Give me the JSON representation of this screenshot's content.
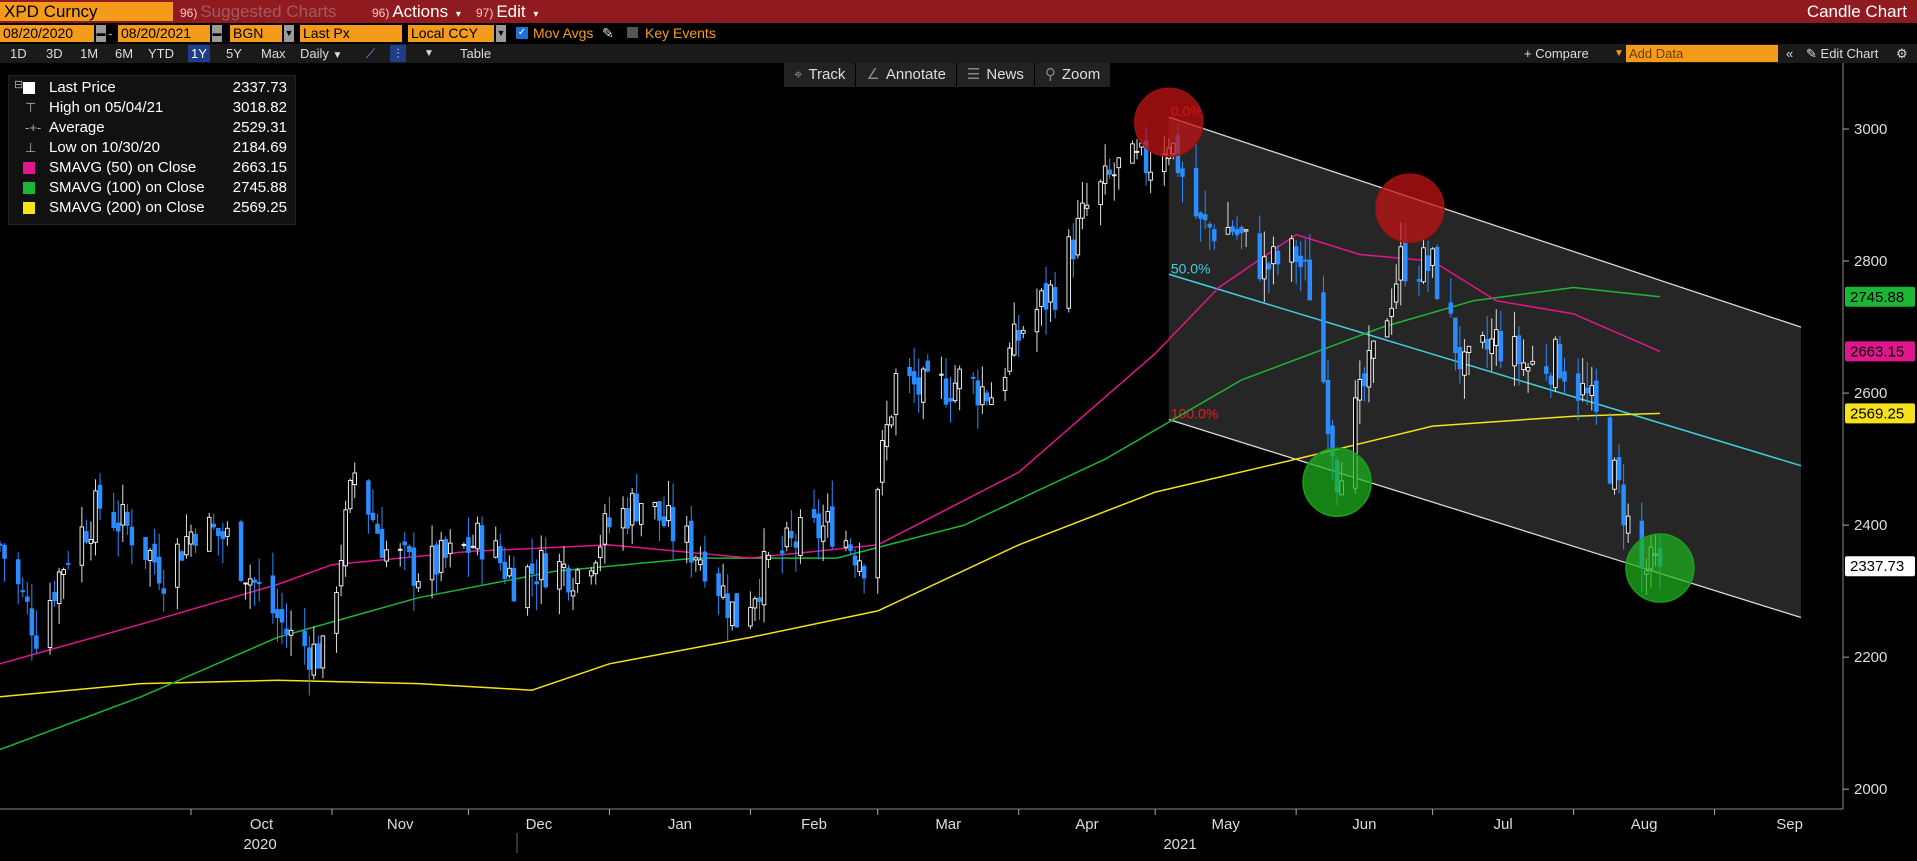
{
  "header": {
    "ticker": "XPD Curncy",
    "suggested_num": "96)",
    "suggested_label": "Suggested Charts",
    "actions_num": "96)",
    "actions_label": "Actions",
    "edit_num": "97)",
    "edit_label": "Edit",
    "chart_type": "Candle Chart"
  },
  "options": {
    "date_from": "08/20/2020",
    "date_to": "08/20/2021",
    "source": "BGN",
    "field": "Last Px",
    "currency": "Local CCY",
    "mov_avgs": "Mov Avgs",
    "key_events": "Key Events"
  },
  "range": {
    "periods": [
      "1D",
      "3D",
      "1M",
      "6M",
      "YTD",
      "1Y",
      "5Y",
      "Max"
    ],
    "selected": "1Y",
    "frequency": "Daily",
    "table": "Table",
    "compare": "+ Compare",
    "add_data_placeholder": "Add Data",
    "edit_chart": "Edit Chart"
  },
  "toolbar": {
    "track": "Track",
    "annotate": "Annotate",
    "news": "News",
    "zoom": "Zoom"
  },
  "legend": [
    {
      "label": "Last Price",
      "value": "2337.73",
      "kind": "swatch",
      "color": "#ffffff"
    },
    {
      "label": "High on 05/04/21",
      "value": "3018.82",
      "kind": "icon",
      "icon": "high-marker-icon"
    },
    {
      "label": "Average",
      "value": "2529.31",
      "kind": "icon",
      "icon": "average-marker-icon"
    },
    {
      "label": "Low on 10/30/20",
      "value": "2184.69",
      "kind": "icon",
      "icon": "low-marker-icon"
    },
    {
      "label": "SMAVG (50)  on Close",
      "value": "2663.15",
      "kind": "swatch",
      "color": "#e0168e"
    },
    {
      "label": "SMAVG (100)  on Close",
      "value": "2745.88",
      "kind": "swatch",
      "color": "#1db535"
    },
    {
      "label": "SMAVG (200)  on Close",
      "value": "2569.25",
      "kind": "swatch",
      "color": "#f5e21b"
    }
  ],
  "chart_data": {
    "type": "candlestick",
    "x_start": "2020-08-20",
    "x_end": "2021-08-20",
    "ylim": [
      1970,
      3100
    ],
    "y_ticks": [
      2000,
      2200,
      2400,
      2600,
      2800,
      3000
    ],
    "x_month_labels": [
      "Oct",
      "Nov",
      "Dec",
      "Jan",
      "Feb",
      "Mar",
      "Apr",
      "May",
      "Jun",
      "Jul",
      "Aug",
      "Sep"
    ],
    "x_year_labels": [
      "2020",
      "2021"
    ],
    "last_price": 2337.73,
    "price_path": [
      [
        "2020-08-20",
        2370
      ],
      [
        "2020-08-28",
        2240
      ],
      [
        "2020-09-04",
        2360
      ],
      [
        "2020-09-11",
        2430
      ],
      [
        "2020-09-18",
        2390
      ],
      [
        "2020-09-25",
        2330
      ],
      [
        "2020-10-02",
        2400
      ],
      [
        "2020-10-09",
        2380
      ],
      [
        "2020-10-16",
        2300
      ],
      [
        "2020-10-23",
        2230
      ],
      [
        "2020-10-30",
        2200
      ],
      [
        "2020-11-06",
        2480
      ],
      [
        "2020-11-13",
        2360
      ],
      [
        "2020-11-20",
        2330
      ],
      [
        "2020-11-27",
        2350
      ],
      [
        "2020-12-04",
        2380
      ],
      [
        "2020-12-11",
        2320
      ],
      [
        "2020-12-18",
        2340
      ],
      [
        "2020-12-25",
        2330
      ],
      [
        "2021-01-01",
        2400
      ],
      [
        "2021-01-08",
        2440
      ],
      [
        "2021-01-15",
        2390
      ],
      [
        "2021-01-22",
        2350
      ],
      [
        "2021-01-29",
        2260
      ],
      [
        "2021-02-05",
        2340
      ],
      [
        "2021-02-12",
        2380
      ],
      [
        "2021-02-19",
        2400
      ],
      [
        "2021-02-26",
        2350
      ],
      [
        "2021-03-05",
        2620
      ],
      [
        "2021-03-12",
        2600
      ],
      [
        "2021-03-19",
        2620
      ],
      [
        "2021-03-26",
        2600
      ],
      [
        "2021-04-02",
        2700
      ],
      [
        "2021-04-09",
        2760
      ],
      [
        "2021-04-16",
        2880
      ],
      [
        "2021-04-23",
        2940
      ],
      [
        "2021-04-30",
        2950
      ],
      [
        "2021-05-04",
        2990
      ],
      [
        "2021-05-11",
        2850
      ],
      [
        "2021-05-18",
        2850
      ],
      [
        "2021-05-25",
        2790
      ],
      [
        "2021-06-01",
        2810
      ],
      [
        "2021-06-04",
        2760
      ],
      [
        "2021-06-10",
        2480
      ],
      [
        "2021-06-17",
        2630
      ],
      [
        "2021-06-24",
        2800
      ],
      [
        "2021-07-01",
        2790
      ],
      [
        "2021-07-08",
        2630
      ],
      [
        "2021-07-15",
        2680
      ],
      [
        "2021-07-22",
        2640
      ],
      [
        "2021-07-29",
        2650
      ],
      [
        "2021-08-05",
        2580
      ],
      [
        "2021-08-11",
        2450
      ],
      [
        "2021-08-16",
        2330
      ],
      [
        "2021-08-20",
        2337.73
      ]
    ],
    "sma_50": [
      [
        "2020-08-20",
        2190
      ],
      [
        "2020-09-20",
        2250
      ],
      [
        "2020-10-20",
        2310
      ],
      [
        "2020-11-01",
        2340
      ],
      [
        "2020-12-01",
        2360
      ],
      [
        "2021-01-01",
        2370
      ],
      [
        "2021-02-01",
        2350
      ],
      [
        "2021-03-01",
        2370
      ],
      [
        "2021-04-01",
        2480
      ],
      [
        "2021-05-01",
        2660
      ],
      [
        "2021-05-15",
        2760
      ],
      [
        "2021-06-01",
        2840
      ],
      [
        "2021-06-15",
        2810
      ],
      [
        "2021-07-01",
        2800
      ],
      [
        "2021-07-15",
        2740
      ],
      [
        "2021-08-01",
        2720
      ],
      [
        "2021-08-20",
        2663.15
      ]
    ],
    "sma_100": [
      [
        "2020-08-20",
        2060
      ],
      [
        "2020-09-20",
        2140
      ],
      [
        "2020-10-20",
        2230
      ],
      [
        "2020-11-20",
        2290
      ],
      [
        "2020-12-20",
        2330
      ],
      [
        "2021-01-20",
        2350
      ],
      [
        "2021-02-20",
        2350
      ],
      [
        "2021-03-20",
        2400
      ],
      [
        "2021-04-20",
        2500
      ],
      [
        "2021-05-20",
        2620
      ],
      [
        "2021-06-20",
        2700
      ],
      [
        "2021-07-10",
        2740
      ],
      [
        "2021-08-01",
        2760
      ],
      [
        "2021-08-20",
        2745.88
      ]
    ],
    "sma_200": [
      [
        "2020-08-20",
        2140
      ],
      [
        "2020-09-20",
        2160
      ],
      [
        "2020-10-20",
        2165
      ],
      [
        "2020-11-20",
        2160
      ],
      [
        "2020-12-15",
        2150
      ],
      [
        "2021-01-01",
        2190
      ],
      [
        "2021-02-01",
        2230
      ],
      [
        "2021-03-01",
        2270
      ],
      [
        "2021-04-01",
        2370
      ],
      [
        "2021-05-01",
        2450
      ],
      [
        "2021-06-01",
        2500
      ],
      [
        "2021-07-01",
        2550
      ],
      [
        "2021-08-01",
        2565
      ],
      [
        "2021-08-20",
        2569.25
      ]
    ],
    "channel": {
      "start": "2021-05-04",
      "end": "2021-09-20",
      "top": [
        3018,
        2700
      ],
      "mid": [
        2780,
        2490
      ],
      "bottom": [
        2560,
        2260
      ],
      "labels": [
        "0.0%",
        "50.0%",
        "100.0%"
      ]
    },
    "highlights": [
      {
        "date": "2021-05-04",
        "price": 3010,
        "color": "red"
      },
      {
        "date": "2021-06-26",
        "price": 2880,
        "color": "red"
      },
      {
        "date": "2021-06-10",
        "price": 2465,
        "color": "green"
      },
      {
        "date": "2021-08-20",
        "price": 2335,
        "color": "green"
      }
    ],
    "right_tags": [
      {
        "value": "2745.88",
        "color": "#1db535",
        "text_color": "#000"
      },
      {
        "value": "2663.15",
        "color": "#e0168e",
        "text_color": "#000"
      },
      {
        "value": "2569.25",
        "color": "#f5e21b",
        "text_color": "#000"
      },
      {
        "value": "2337.73",
        "color": "#ffffff",
        "text_color": "#000"
      }
    ]
  }
}
